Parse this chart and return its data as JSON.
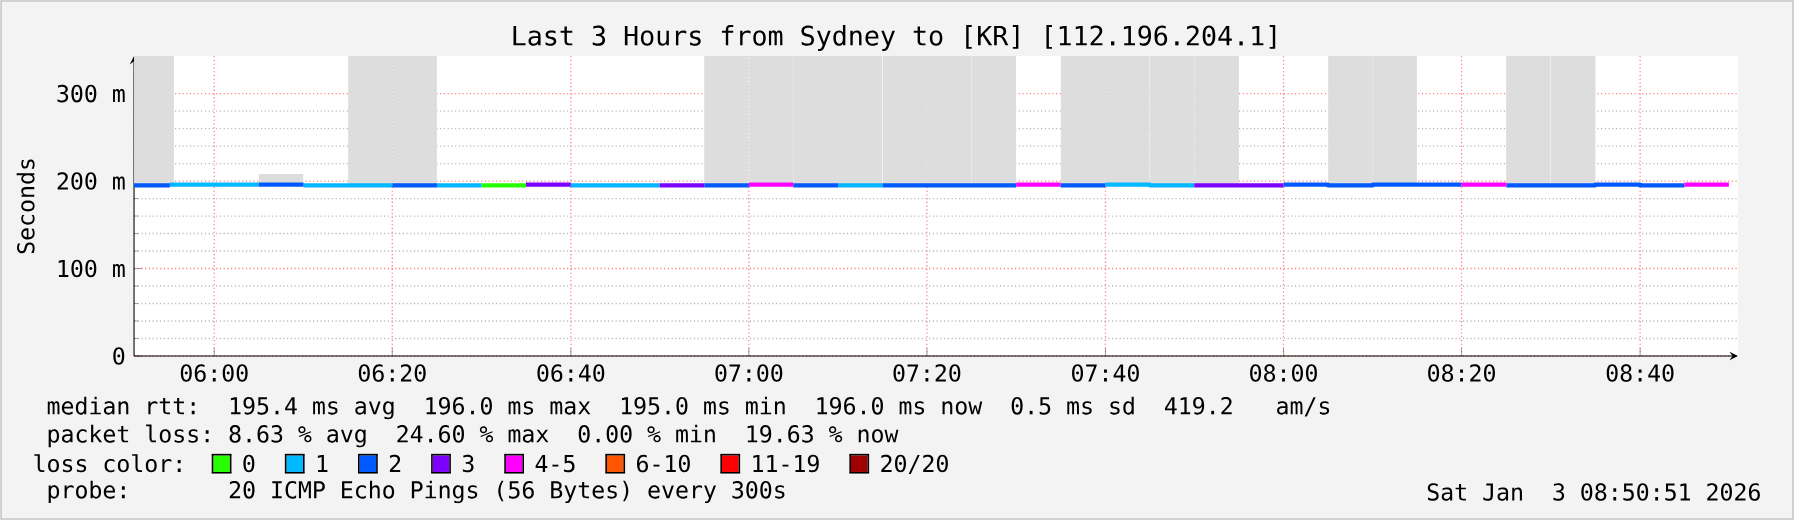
{
  "chart_data": {
    "type": "step",
    "title": "Last 3 Hours from Sydney to [KR] [112.196.204.1]",
    "ylabel": "Seconds",
    "legend_title": "loss color:",
    "legend": "bottom",
    "grid": true,
    "xlim": [
      5.85,
      8.85
    ],
    "xticks": [
      {
        "value": 6,
        "label": "06:00"
      },
      {
        "value": 6.333,
        "label": "06:20"
      },
      {
        "value": 6.667,
        "label": "06:40"
      },
      {
        "value": 7,
        "label": "07:00"
      },
      {
        "value": 7.333,
        "label": "07:20"
      },
      {
        "value": 7.667,
        "label": "07:40"
      },
      {
        "value": 8,
        "label": "08:00"
      },
      {
        "value": 8.333,
        "label": "08:20"
      },
      {
        "value": 8.667,
        "label": "08:40"
      }
    ],
    "ylim": [
      0,
      343
    ],
    "yticks": [
      0,
      {
        "value": 100,
        "label": "100 m"
      },
      {
        "value": 200,
        "label": "200 m"
      },
      {
        "value": 300,
        "label": "300 m"
      }
    ],
    "series": [
      {
        "type": "bar",
        "color": "#dddddd",
        "x": [
          5.883,
          6.125,
          6.292,
          6.375,
          6.958,
          7.042,
          7.125,
          7.208,
          7.292,
          7.375,
          7.458,
          7.625,
          7.708,
          7.792,
          7.875,
          8.125,
          8.208,
          8.458,
          8.542
        ],
        "base": [
          196,
          196,
          196,
          196,
          196,
          196,
          196,
          196,
          196,
          196,
          196,
          196,
          196,
          196,
          196,
          196,
          196,
          196,
          196
        ],
        "values": [
          147,
          12,
          147,
          147,
          147,
          147,
          147,
          147,
          147,
          147,
          147,
          147,
          147,
          147,
          147,
          147,
          147,
          147,
          147
        ]
      },
      {
        "name": "0",
        "color": "#26ff00",
        "x": [
          6.5,
          6.583
        ],
        "values": [
          195,
          195
        ]
      },
      {
        "name": "1",
        "color": "#00b8ff",
        "x": [
          5.917,
          6,
          6.083,
          null,
          6.167,
          6.25,
          6.333,
          null,
          6.417,
          6.5,
          null,
          6.667,
          6.75,
          6.833,
          null,
          7.167,
          7.25,
          null,
          7.667,
          7.75,
          7.833
        ],
        "values": [
          196,
          196,
          196,
          null,
          195,
          195,
          195,
          null,
          195,
          195,
          null,
          195,
          195,
          195,
          null,
          195,
          195,
          null,
          196,
          195,
          195
        ]
      },
      {
        "name": "2",
        "color": "#0059ff",
        "x": [
          5.85,
          5.917,
          null,
          6.083,
          6.167,
          null,
          6.333,
          6.417,
          null,
          6.917,
          7,
          null,
          7.083,
          7.167,
          null,
          7.25,
          7.333,
          7.417,
          7.5,
          null,
          7.583,
          7.667,
          null,
          8,
          8.083,
          8.167,
          8.25,
          8.333,
          null,
          8.417,
          8.5,
          8.583,
          8.667,
          8.75
        ],
        "values": [
          195,
          195,
          null,
          196,
          196,
          null,
          195,
          195,
          null,
          195,
          195,
          null,
          195,
          195,
          null,
          195,
          195,
          195,
          195,
          null,
          195,
          195,
          null,
          196,
          195,
          196,
          196,
          196,
          null,
          195,
          195,
          196,
          195,
          195
        ]
      },
      {
        "name": "3",
        "color": "#7e00ff",
        "x": [
          6.583,
          6.667,
          null,
          6.833,
          6.917,
          null,
          7.833,
          7.917,
          8
        ],
        "values": [
          196,
          196,
          null,
          195,
          195,
          null,
          195,
          195,
          195
        ]
      },
      {
        "name": "4-5",
        "color": "#ff00ff",
        "x": [
          7,
          7.083,
          null,
          7.5,
          7.583,
          null,
          8.333,
          8.417,
          null,
          8.75,
          8.833
        ],
        "values": [
          196,
          196,
          null,
          196,
          196,
          null,
          196,
          196,
          null,
          196,
          196
        ]
      },
      {
        "name": "6-10",
        "color": "#ff5500"
      },
      {
        "name": "11-19",
        "color": "#ff0000"
      },
      {
        "name": "20/20",
        "color": "#a10000"
      }
    ],
    "annotations": [
      "median rtt:  195.4 ms avg  196.0 ms max  195.0 ms min  196.0 ms now  0.5 ms sd  419.2   am/s",
      "packet loss: 8.63 % avg  24.60 % max  0.00 % min  19.63 % now",
      "probe:       20 ICMP Echo Pings (56 Bytes) every 300s",
      "Sat Jan  3 08:50:51 2026"
    ]
  }
}
